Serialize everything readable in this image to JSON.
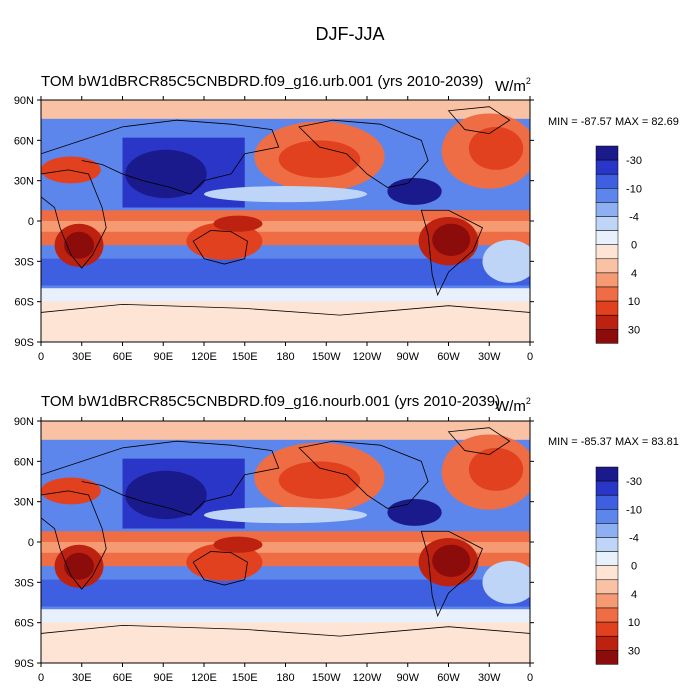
{
  "chart_data": {
    "type": "heatmap",
    "title": "DJF-JJA",
    "palette": [
      "#1a1a8c",
      "#2a36c8",
      "#3d5fe0",
      "#5d86ec",
      "#8eb0f2",
      "#bfd5f7",
      "#e8f0fb",
      "#fde4d4",
      "#f9c2a4",
      "#f59a73",
      "#ee6d44",
      "#e1411f",
      "#bd2210",
      "#8c0b0b"
    ],
    "levels": [
      "-30",
      "-10",
      "-4",
      "0",
      "4",
      "10",
      "30"
    ],
    "x_ticks": [
      "0",
      "30E",
      "60E",
      "90E",
      "120E",
      "150E",
      "180",
      "150W",
      "120W",
      "90W",
      "60W",
      "30W",
      "0"
    ],
    "y_ticks": [
      "90N",
      "60N",
      "30N",
      "0",
      "30S",
      "60S",
      "90S"
    ],
    "xlim": [
      0,
      360
    ],
    "ylim": [
      -90,
      90
    ],
    "panels": [
      {
        "left_title": "TOM bW1dBRCR85C5CNBDRD.f09_g16.urb.001 (yrs 2010-2039)",
        "units": "W/m",
        "units_sup": "2",
        "stats": "MIN = -87.57 MAX =  82.69",
        "min": -87.57,
        "max": 82.69
      },
      {
        "left_title": "TOM bW1dBRCR85C5CNBDRD.f09_g16.nourb.001 (yrs 2010-2039)",
        "units": "W/m",
        "units_sup": "2",
        "stats": "MIN = -85.37 MAX =  83.81",
        "min": -85.37,
        "max": 83.81
      }
    ]
  }
}
